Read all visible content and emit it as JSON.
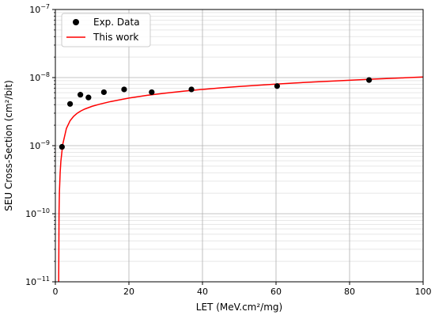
{
  "chart_data": {
    "type": "scatter",
    "title": "",
    "xlabel": "LET (MeV.cm²/mg)",
    "ylabel": "SEU Cross-Section (cm²/bit)",
    "xlim": [
      0,
      100
    ],
    "ylim": [
      1e-11,
      1e-07
    ],
    "yscale": "log",
    "grid": "major and minor",
    "legend_position": "top-left",
    "x_ticks": [
      {
        "value": 0,
        "label": "0"
      },
      {
        "value": 20,
        "label": "20"
      },
      {
        "value": 40,
        "label": "40"
      },
      {
        "value": 60,
        "label": "60"
      },
      {
        "value": 80,
        "label": "80"
      },
      {
        "value": 100,
        "label": "100"
      }
    ],
    "y_ticks": [
      {
        "value": 1e-11,
        "base": "10",
        "exp": "−11"
      },
      {
        "value": 1e-10,
        "base": "10",
        "exp": "−10"
      },
      {
        "value": 1e-09,
        "base": "10",
        "exp": "−9"
      },
      {
        "value": 1e-08,
        "base": "10",
        "exp": "−8"
      },
      {
        "value": 1e-07,
        "base": "10",
        "exp": "−7"
      }
    ],
    "series": [
      {
        "name": "Exp. Data",
        "kind": "scatter",
        "color": "#000000",
        "x": [
          1.8,
          4.0,
          6.8,
          9.0,
          13.2,
          18.7,
          26.2,
          37.0,
          60.3,
          85.3
        ],
        "y": [
          9.6e-10,
          4.1e-09,
          5.6e-09,
          5.1e-09,
          6.1e-09,
          6.7e-09,
          6.1e-09,
          6.7e-09,
          7.5e-09,
          9.2e-09
        ]
      },
      {
        "name": "This work",
        "kind": "line",
        "color": "#ff0000",
        "x": [
          0.9,
          1.0,
          1.1,
          1.3,
          1.5,
          2,
          3,
          4,
          5,
          6,
          7,
          8,
          10,
          12,
          15,
          20,
          25,
          30,
          35,
          40,
          45,
          50,
          55,
          60,
          65,
          70,
          75,
          80,
          85,
          90,
          95,
          100
        ],
        "y": [
          1e-11,
          1.06e-10,
          2.06e-10,
          4.01e-10,
          5.91e-10,
          1.04e-09,
          1.79e-09,
          2.32e-09,
          2.71e-09,
          3.01e-09,
          3.25e-09,
          3.45e-09,
          3.79e-09,
          4.06e-09,
          4.44e-09,
          5e-09,
          5.49e-09,
          5.92e-09,
          6.32e-09,
          6.7e-09,
          7.05e-09,
          7.39e-09,
          7.71e-09,
          8.02e-09,
          8.32e-09,
          8.61e-09,
          8.88e-09,
          9.15e-09,
          9.42e-09,
          9.67e-09,
          9.92e-09,
          1.02e-08
        ]
      }
    ]
  }
}
